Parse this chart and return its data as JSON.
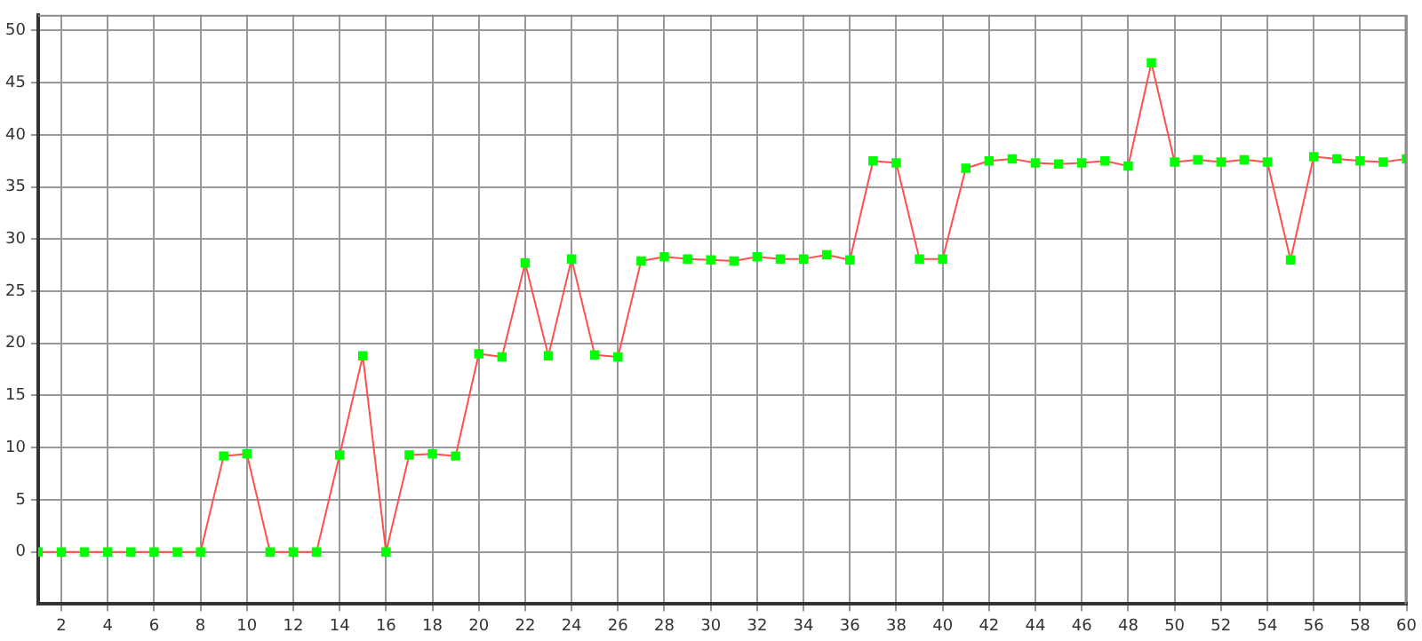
{
  "chart_data": {
    "type": "line",
    "x": [
      1,
      2,
      3,
      4,
      5,
      6,
      7,
      8,
      9,
      10,
      11,
      12,
      13,
      14,
      15,
      16,
      17,
      18,
      19,
      20,
      21,
      22,
      23,
      24,
      25,
      26,
      27,
      28,
      29,
      30,
      31,
      32,
      33,
      34,
      35,
      36,
      37,
      38,
      39,
      40,
      41,
      42,
      43,
      44,
      45,
      46,
      47,
      48,
      49,
      50,
      51,
      52,
      53,
      54,
      55,
      56,
      57,
      58,
      59,
      60
    ],
    "series": [
      {
        "color": "#ff5050",
        "values": [
          0,
          0,
          0,
          0,
          0,
          0,
          0,
          0,
          9.2,
          9.4,
          0,
          0,
          0,
          9.3,
          18.8,
          0,
          9.3,
          9.4,
          9.2,
          19,
          18.7,
          27.7,
          18.8,
          28.1,
          18.9,
          18.7,
          27.9,
          28.3,
          28.1,
          28,
          27.9,
          28.3,
          28.1,
          28.1,
          28.5,
          28,
          37.5,
          37.3,
          28.1,
          28.1,
          36.8,
          37.5,
          37.7,
          37.3,
          37.2,
          37.3,
          37.5,
          37,
          46.9,
          37.4,
          37.6,
          37.4,
          37.6,
          37.4,
          28,
          37.9,
          37.7,
          37.5,
          37.4,
          37.7
        ]
      }
    ],
    "marker": "square",
    "line_style": "solid",
    "grid": true,
    "legend": false,
    "xlim": [
      1,
      60
    ],
    "xticks": [
      2,
      4,
      6,
      8,
      10,
      12,
      14,
      16,
      18,
      20,
      22,
      24,
      26,
      28,
      30,
      32,
      34,
      36,
      38,
      40,
      42,
      44,
      46,
      48,
      50,
      52,
      54,
      56,
      58,
      60
    ],
    "ylim": [
      -5,
      51.5
    ],
    "yticks": [
      0,
      5,
      10,
      15,
      20,
      25,
      30,
      35,
      40,
      45,
      50
    ]
  }
}
